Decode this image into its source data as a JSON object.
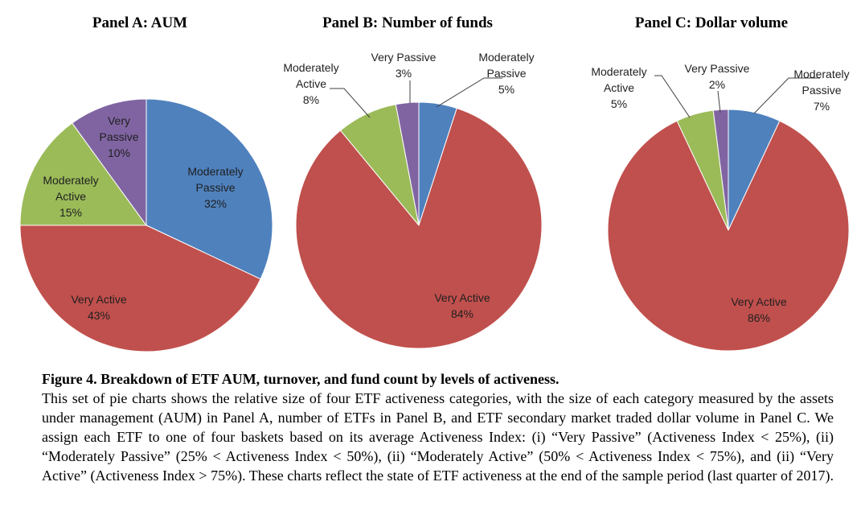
{
  "chart_data": [
    {
      "type": "pie",
      "title": "Panel A:  AUM",
      "slices": [
        {
          "name": "Moderately Passive",
          "label_lines": [
            "Moderately",
            "Passive",
            "32%"
          ],
          "value": 32,
          "color": "#4f81bd"
        },
        {
          "name": "Very Active",
          "label_lines": [
            "Very Active",
            "43%"
          ],
          "value": 43,
          "color": "#c0504d"
        },
        {
          "name": "Moderately Active",
          "label_lines": [
            "Moderately",
            "Active",
            "15%"
          ],
          "value": 15,
          "color": "#9bbb59"
        },
        {
          "name": "Very Passive",
          "label_lines": [
            "Very",
            "Passive",
            "10%"
          ],
          "value": 10,
          "color": "#8064a2"
        }
      ]
    },
    {
      "type": "pie",
      "title": "Panel B: Number of funds",
      "slices": [
        {
          "name": "Moderately Passive",
          "label_lines": [
            "Moderately",
            "Passive",
            "5%"
          ],
          "value": 5,
          "color": "#4f81bd"
        },
        {
          "name": "Very Active",
          "label_lines": [
            "Very Active",
            "84%"
          ],
          "value": 84,
          "color": "#c0504d"
        },
        {
          "name": "Moderately Active",
          "label_lines": [
            "Moderately",
            "Active",
            "8%"
          ],
          "value": 8,
          "color": "#9bbb59"
        },
        {
          "name": "Very Passive",
          "label_lines": [
            "Very Passive",
            "3%"
          ],
          "value": 3,
          "color": "#8064a2"
        }
      ]
    },
    {
      "type": "pie",
      "title": "Panel C: Dollar volume",
      "slices": [
        {
          "name": "Moderately Passive",
          "label_lines": [
            "Moderately",
            "Passive",
            "7%"
          ],
          "value": 7,
          "color": "#4f81bd"
        },
        {
          "name": "Very Active",
          "label_lines": [
            "Very Active",
            "86%"
          ],
          "value": 86,
          "color": "#c0504d"
        },
        {
          "name": "Moderately Active",
          "label_lines": [
            "Moderately",
            "Active",
            "5%"
          ],
          "value": 5,
          "color": "#9bbb59"
        },
        {
          "name": "Very Passive",
          "label_lines": [
            "Very Passive",
            "2%"
          ],
          "value": 2,
          "color": "#8064a2"
        }
      ]
    }
  ],
  "caption": {
    "title": "Figure 4. Breakdown of ETF AUM, turnover, and fund count by levels of activeness.",
    "body": "This set of pie charts shows the relative size of four ETF activeness categories, with the size of each category measured by the assets under management (AUM) in Panel A, number of ETFs in Panel B, and ETF secondary market traded dollar volume in Panel C.  We assign each ETF to one of four baskets based on its average Activeness Index: (i) “Very Passive” (Activeness Index < 25%), (ii) “Moderately Passive” (25% < Activeness Index < 50%), (ii) “Moderately Active” (50% < Activeness Index < 75%), and (ii) “Very Active” (Activeness Index > 75%).  These charts reflect the state of ETF activeness at the end of the sample period (last quarter of 2017)."
  }
}
